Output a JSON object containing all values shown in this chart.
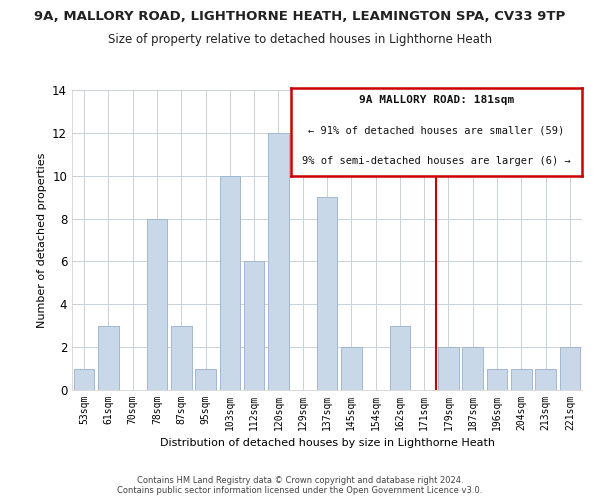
{
  "title": "9A, MALLORY ROAD, LIGHTHORNE HEATH, LEAMINGTON SPA, CV33 9TP",
  "subtitle": "Size of property relative to detached houses in Lighthorne Heath",
  "xlabel": "Distribution of detached houses by size in Lighthorne Heath",
  "ylabel": "Number of detached properties",
  "categories": [
    "53sqm",
    "61sqm",
    "70sqm",
    "78sqm",
    "87sqm",
    "95sqm",
    "103sqm",
    "112sqm",
    "120sqm",
    "129sqm",
    "137sqm",
    "145sqm",
    "154sqm",
    "162sqm",
    "171sqm",
    "179sqm",
    "187sqm",
    "196sqm",
    "204sqm",
    "213sqm",
    "221sqm"
  ],
  "values": [
    1,
    3,
    0,
    8,
    3,
    1,
    10,
    6,
    12,
    0,
    9,
    2,
    0,
    3,
    0,
    2,
    2,
    1,
    1,
    1,
    2
  ],
  "bar_color": "#c8d8e8",
  "bar_edge_color": "#a0b8d0",
  "vline_index": 15,
  "vline_color": "#cc0000",
  "ylim": [
    0,
    14
  ],
  "yticks": [
    0,
    2,
    4,
    6,
    8,
    10,
    12,
    14
  ],
  "annotation_title": "9A MALLORY ROAD: 181sqm",
  "annotation_line1": "← 91% of detached houses are smaller (59)",
  "annotation_line2": "9% of semi-detached houses are larger (6) →",
  "annotation_box_color": "#ffffff",
  "annotation_box_edge": "#cc0000",
  "footer_line1": "Contains HM Land Registry data © Crown copyright and database right 2024.",
  "footer_line2": "Contains public sector information licensed under the Open Government Licence v3.0.",
  "background_color": "#ffffff",
  "grid_color": "#c8d0d8"
}
